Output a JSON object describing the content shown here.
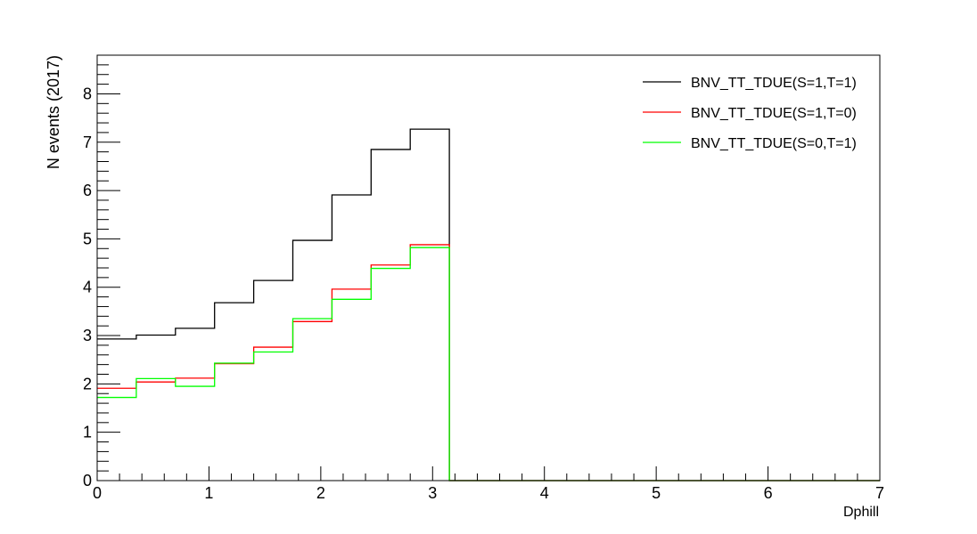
{
  "chart_data": {
    "type": "step",
    "title": "",
    "xlabel": "Dphill",
    "ylabel": "N events (2017)",
    "xlim": [
      0,
      7
    ],
    "ylim": [
      0,
      8.8
    ],
    "x_ticks": [
      "0",
      "1",
      "2",
      "3",
      "4",
      "5",
      "6",
      "7"
    ],
    "y_ticks": [
      "0",
      "1",
      "2",
      "3",
      "4",
      "5",
      "6",
      "7",
      "8"
    ],
    "bin_edges": [
      0,
      0.35,
      0.7,
      1.05,
      1.4,
      1.75,
      2.1,
      2.45,
      2.8,
      3.15,
      3.5,
      3.85,
      4.2,
      4.55,
      4.9,
      5.25,
      5.6,
      5.95,
      6.3,
      6.65,
      7.0
    ],
    "legend_position": "top-right",
    "grid": false,
    "series": [
      {
        "name": "BNV_TT_TDUE(S=1,T=1)",
        "color": "#000000",
        "values": [
          2.93,
          3.01,
          3.15,
          3.68,
          4.14,
          4.97,
          5.91,
          6.85,
          7.27,
          0,
          0,
          0,
          0,
          0,
          0,
          0,
          0,
          0,
          0,
          0
        ]
      },
      {
        "name": "BNV_TT_TDUE(S=1,T=0)",
        "color": "#ff0000",
        "values": [
          1.91,
          2.04,
          2.12,
          2.42,
          2.76,
          3.29,
          3.96,
          4.46,
          4.88,
          0,
          0,
          0,
          0,
          0,
          0,
          0,
          0,
          0,
          0,
          0
        ]
      },
      {
        "name": "BNV_TT_TDUE(S=0,T=1)",
        "color": "#00ff00",
        "values": [
          1.72,
          2.11,
          1.95,
          2.43,
          2.66,
          3.35,
          3.75,
          4.39,
          4.82,
          0,
          0,
          0,
          0,
          0,
          0,
          0,
          0,
          0,
          0,
          0
        ]
      }
    ]
  }
}
